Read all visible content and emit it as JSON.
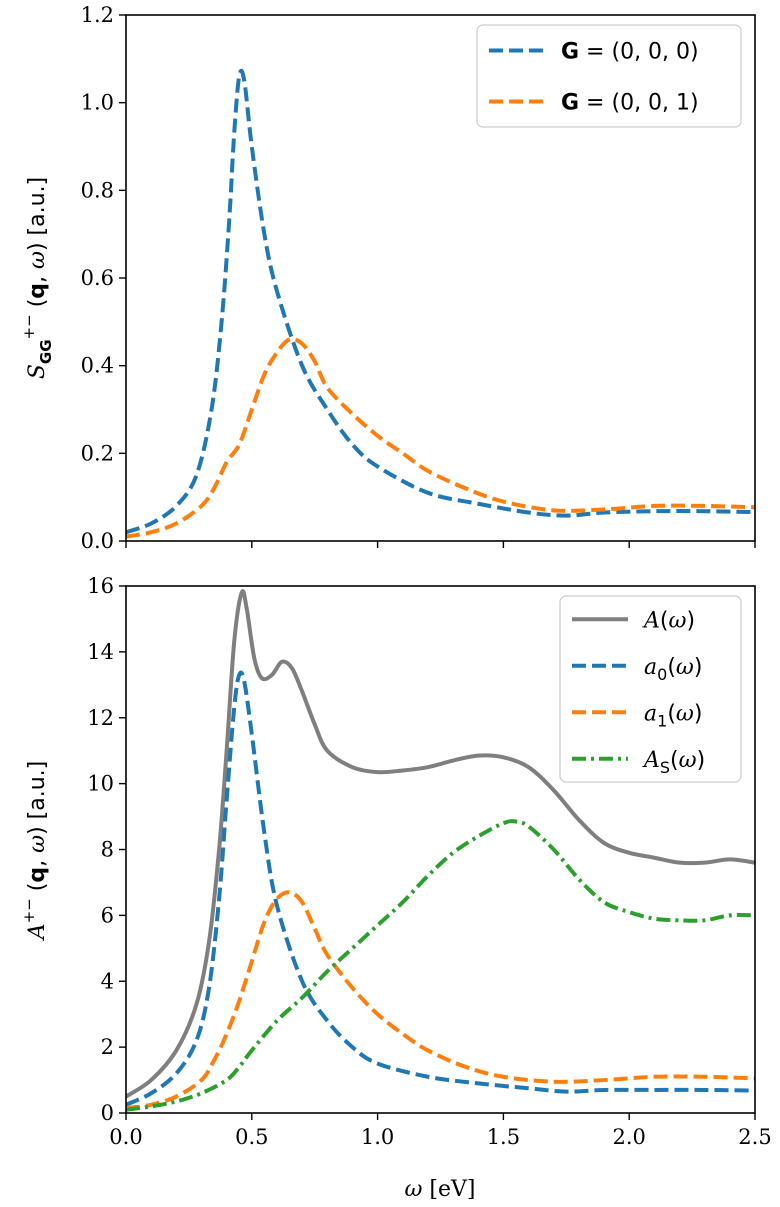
{
  "chart_data": [
    {
      "type": "line",
      "ylabel": "S_GG^{+-}(q, ω) [a.u.]",
      "xlim": [
        0,
        2.5
      ],
      "ylim": [
        0,
        1.2
      ],
      "x_ticks": [
        0.0,
        0.5,
        1.0,
        1.5,
        2.0,
        2.5
      ],
      "x_tick_labels_shown": false,
      "y_ticks": [
        0.0,
        0.2,
        0.4,
        0.6,
        0.8,
        1.0,
        1.2
      ],
      "y_tick_labels": [
        "0.0",
        "0.2",
        "0.4",
        "0.6",
        "0.8",
        "1.0",
        "1.2"
      ],
      "legend_position": "top-right",
      "grid": false,
      "series": [
        {
          "name": "G = (0, 0, 0)",
          "color": "#1f77b4",
          "style": "dashed",
          "x": [
            0.0,
            0.1,
            0.2,
            0.28,
            0.34,
            0.38,
            0.41,
            0.43,
            0.45,
            0.47,
            0.5,
            0.55,
            0.6,
            0.7,
            0.8,
            0.9,
            1.0,
            1.2,
            1.4,
            1.6,
            1.75,
            1.9,
            2.1,
            2.3,
            2.5
          ],
          "y": [
            0.02,
            0.04,
            0.08,
            0.15,
            0.3,
            0.5,
            0.73,
            0.93,
            1.06,
            1.05,
            0.9,
            0.7,
            0.57,
            0.4,
            0.3,
            0.22,
            0.17,
            0.11,
            0.085,
            0.065,
            0.058,
            0.065,
            0.068,
            0.068,
            0.066
          ]
        },
        {
          "name": "G = (0, 0, 1)",
          "color": "#ff7f0e",
          "style": "dashed",
          "x": [
            0.0,
            0.1,
            0.2,
            0.3,
            0.35,
            0.4,
            0.45,
            0.5,
            0.55,
            0.6,
            0.65,
            0.7,
            0.75,
            0.8,
            0.9,
            1.0,
            1.1,
            1.2,
            1.35,
            1.5,
            1.7,
            1.9,
            2.1,
            2.3,
            2.5
          ],
          "y": [
            0.01,
            0.02,
            0.04,
            0.08,
            0.12,
            0.18,
            0.22,
            0.3,
            0.38,
            0.43,
            0.46,
            0.45,
            0.41,
            0.35,
            0.29,
            0.24,
            0.2,
            0.16,
            0.12,
            0.09,
            0.07,
            0.072,
            0.08,
            0.08,
            0.077
          ]
        }
      ]
    },
    {
      "type": "line",
      "xlabel": "ω [eV]",
      "ylabel": "A^{+-}(q, ω) [a.u.]",
      "xlim": [
        0,
        2.5
      ],
      "ylim": [
        0,
        16
      ],
      "x_ticks": [
        0.0,
        0.5,
        1.0,
        1.5,
        2.0,
        2.5
      ],
      "x_tick_labels": [
        "0.0",
        "0.5",
        "1.0",
        "1.5",
        "2.0",
        "2.5"
      ],
      "y_ticks": [
        0,
        2,
        4,
        6,
        8,
        10,
        12,
        14,
        16
      ],
      "y_tick_labels": [
        "0",
        "2",
        "4",
        "6",
        "8",
        "10",
        "12",
        "14",
        "16"
      ],
      "legend_position": "top-right",
      "grid": false,
      "series": [
        {
          "name": "A(ω)",
          "color": "#7f7f7f",
          "style": "solid",
          "x": [
            0.0,
            0.1,
            0.2,
            0.28,
            0.33,
            0.37,
            0.4,
            0.43,
            0.46,
            0.48,
            0.51,
            0.54,
            0.58,
            0.62,
            0.66,
            0.7,
            0.75,
            0.8,
            0.9,
            1.0,
            1.1,
            1.2,
            1.3,
            1.4,
            1.5,
            1.6,
            1.7,
            1.8,
            1.9,
            2.0,
            2.1,
            2.2,
            2.3,
            2.4,
            2.5
          ],
          "y": [
            0.5,
            1.0,
            1.9,
            3.3,
            5.2,
            8.0,
            11.0,
            14.3,
            15.8,
            15.3,
            13.8,
            13.2,
            13.3,
            13.7,
            13.5,
            12.8,
            11.8,
            11.0,
            10.5,
            10.35,
            10.4,
            10.5,
            10.7,
            10.85,
            10.8,
            10.5,
            9.8,
            8.9,
            8.2,
            7.9,
            7.75,
            7.6,
            7.6,
            7.7,
            7.6
          ]
        },
        {
          "name": "a_0(ω)",
          "color": "#1f77b4",
          "style": "dashed",
          "x": [
            0.0,
            0.1,
            0.2,
            0.28,
            0.33,
            0.37,
            0.4,
            0.43,
            0.45,
            0.47,
            0.5,
            0.55,
            0.6,
            0.7,
            0.8,
            0.9,
            1.0,
            1.2,
            1.4,
            1.6,
            1.75,
            1.9,
            2.1,
            2.3,
            2.5
          ],
          "y": [
            0.25,
            0.6,
            1.2,
            2.2,
            3.8,
            6.5,
            9.5,
            12.3,
            13.3,
            13.1,
            11.5,
            8.5,
            6.3,
            4.0,
            2.8,
            2.0,
            1.5,
            1.1,
            0.9,
            0.75,
            0.65,
            0.7,
            0.7,
            0.7,
            0.68
          ]
        },
        {
          "name": "a_1(ω)",
          "color": "#ff7f0e",
          "style": "dashed",
          "x": [
            0.0,
            0.1,
            0.2,
            0.3,
            0.35,
            0.4,
            0.45,
            0.5,
            0.55,
            0.6,
            0.65,
            0.7,
            0.75,
            0.8,
            0.9,
            1.0,
            1.1,
            1.2,
            1.35,
            1.5,
            1.7,
            1.9,
            2.1,
            2.3,
            2.5
          ],
          "y": [
            0.15,
            0.25,
            0.5,
            1.0,
            1.6,
            2.4,
            3.4,
            4.6,
            5.8,
            6.5,
            6.7,
            6.4,
            5.6,
            4.8,
            3.8,
            3.0,
            2.4,
            1.9,
            1.4,
            1.1,
            0.95,
            1.0,
            1.1,
            1.1,
            1.05
          ]
        },
        {
          "name": "A_S(ω)",
          "color": "#2ca02c",
          "style": "dashdot",
          "x": [
            0.0,
            0.1,
            0.2,
            0.3,
            0.4,
            0.45,
            0.5,
            0.6,
            0.7,
            0.8,
            0.9,
            1.0,
            1.1,
            1.2,
            1.3,
            1.4,
            1.5,
            1.55,
            1.6,
            1.7,
            1.8,
            1.9,
            2.0,
            2.1,
            2.2,
            2.3,
            2.4,
            2.5
          ],
          "y": [
            0.1,
            0.2,
            0.35,
            0.6,
            1.0,
            1.4,
            1.9,
            2.8,
            3.5,
            4.3,
            5.0,
            5.7,
            6.4,
            7.2,
            7.9,
            8.4,
            8.8,
            8.85,
            8.7,
            8.0,
            7.1,
            6.4,
            6.1,
            5.9,
            5.85,
            5.85,
            6.0,
            6.0
          ]
        }
      ]
    }
  ]
}
